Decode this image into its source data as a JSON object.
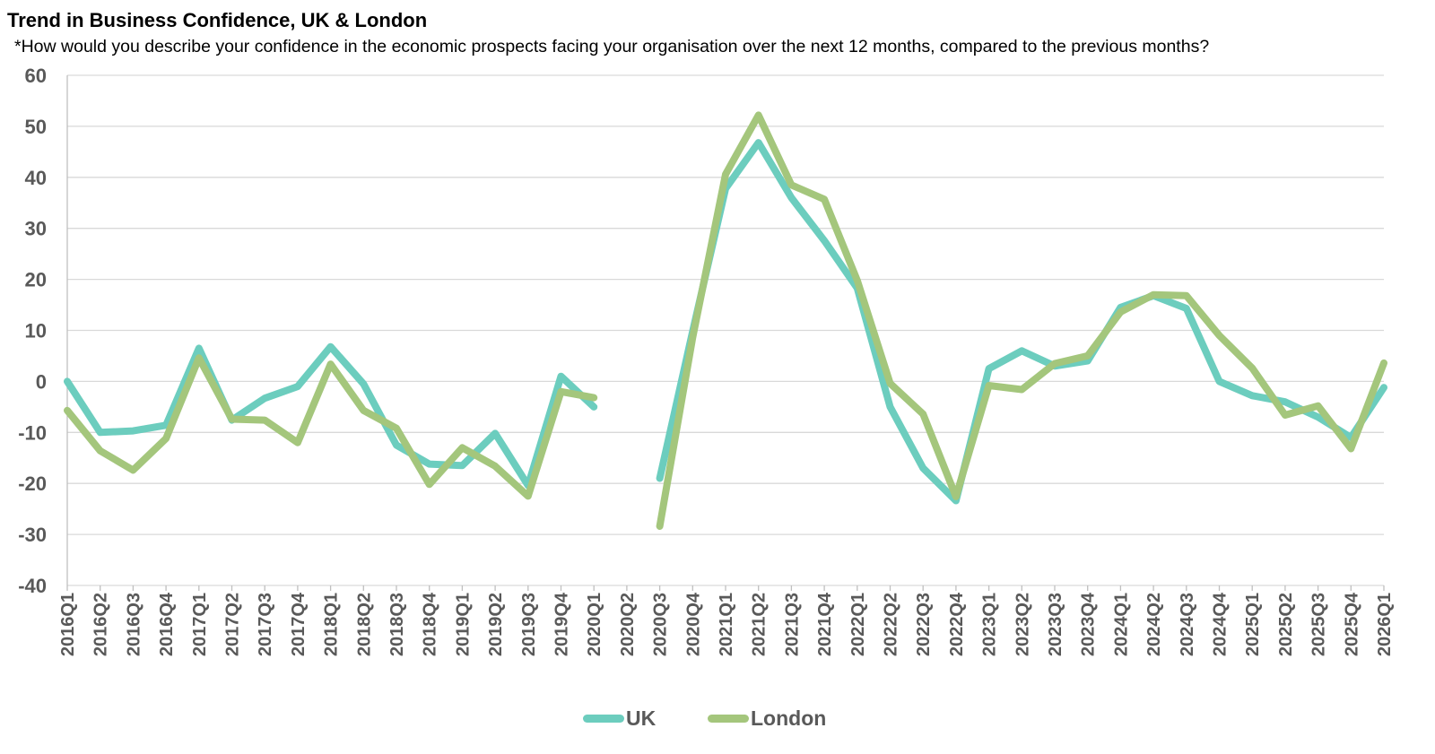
{
  "title": "Trend in Business Confidence, UK & London",
  "subtitle": "*How would you describe your confidence in the economic prospects facing your organisation over the next 12 months, compared to the previous months?",
  "colors": {
    "uk": "#6CCDBE",
    "london": "#A4C67C",
    "grid": "#D9D9D9",
    "axis": "#BFBFBF",
    "tick_text": "#595959"
  },
  "chart_data": {
    "type": "line",
    "title": "Trend in Business Confidence, UK & London",
    "xlabel": "",
    "ylabel": "",
    "ylim": [
      -40,
      60
    ],
    "yticks": [
      60,
      50,
      40,
      30,
      20,
      10,
      0,
      -10,
      -20,
      -30,
      -40
    ],
    "grid": true,
    "legend_position": "bottom",
    "categories": [
      "2016Q1",
      "2016Q2",
      "2016Q3",
      "2016Q4",
      "2017Q1",
      "2017Q2",
      "2017Q3",
      "2017Q4",
      "2018Q1",
      "2018Q2",
      "2018Q3",
      "2018Q4",
      "2019Q1",
      "2019Q2",
      "2019Q3",
      "2019Q4",
      "2020Q1",
      "2020Q2",
      "2020Q3",
      "2020Q4",
      "2021Q1",
      "2021Q2",
      "2021Q3",
      "2021Q4",
      "2022Q1",
      "2022Q2",
      "2022Q3",
      "2022Q4",
      "2023Q1",
      "2023Q2",
      "2023Q3",
      "2023Q4",
      "2024Q1",
      "2024Q2",
      "2024Q3",
      "2024Q4",
      "2025Q1",
      "2025Q2",
      "2025Q3",
      "2025Q4",
      "2026Q1"
    ],
    "series": [
      {
        "name": "UK",
        "color": "#6CCDBE",
        "values": [
          0,
          -10,
          -9.7,
          -8.6,
          6.5,
          -7.6,
          -3.3,
          -1,
          6.8,
          -0.5,
          -12.5,
          -16.2,
          -16.5,
          -10.2,
          -20.4,
          1,
          -5,
          null,
          -19,
          9.8,
          37.8,
          46.8,
          36,
          27.6,
          18.3,
          -5,
          -17,
          -23.4,
          2.5,
          6,
          3,
          4,
          14.5,
          16.8,
          14.3,
          0,
          -2.8,
          -4,
          -7,
          -11,
          -1.2
        ]
      },
      {
        "name": "London",
        "color": "#A4C67C",
        "values": [
          -5.7,
          -13.6,
          -17.4,
          -11.2,
          4.6,
          -7.4,
          -7.6,
          -12,
          3.4,
          -5.7,
          -9.2,
          -20.2,
          -13,
          -16.6,
          -22.5,
          -2,
          -3.2,
          null,
          -28.4,
          8.6,
          40.6,
          52.2,
          38.5,
          35.7,
          19.8,
          -0.4,
          -6.4,
          -22.6,
          -0.8,
          -1.6,
          3.5,
          5,
          13.6,
          17,
          16.8,
          9,
          2.6,
          -6.6,
          -4.8,
          -13.2,
          3.6
        ]
      }
    ]
  },
  "legend": {
    "uk_label": "UK",
    "london_label": "London"
  }
}
